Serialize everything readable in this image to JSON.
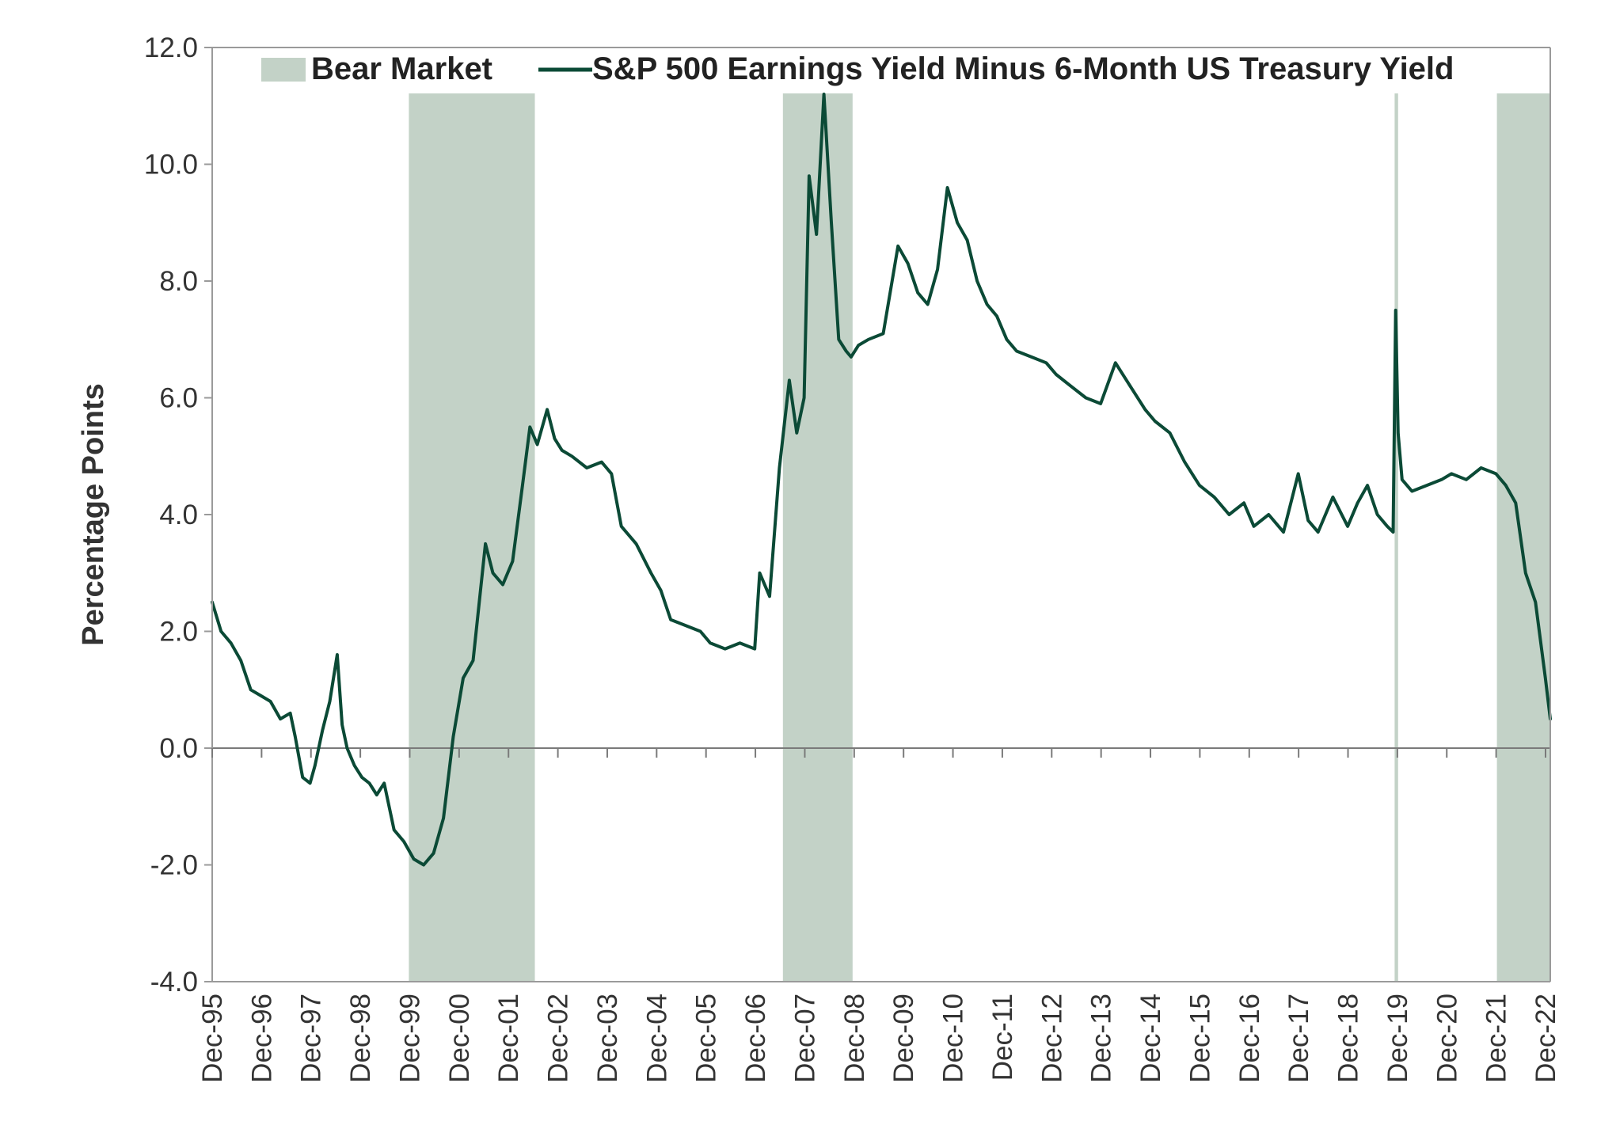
{
  "chart_data": {
    "type": "line",
    "ylabel": "Percentage Points",
    "xlabel": "",
    "ylim": [
      -4.0,
      12.0
    ],
    "y_ticks": [
      "12.0",
      "10.0",
      "8.0",
      "6.0",
      "4.0",
      "2.0",
      "0.0",
      "-2.0",
      "-4.0"
    ],
    "x_ticks": [
      "Dec-95",
      "Dec-96",
      "Dec-97",
      "Dec-98",
      "Dec-99",
      "Dec-00",
      "Dec-01",
      "Dec-02",
      "Dec-03",
      "Dec-04",
      "Dec-05",
      "Dec-06",
      "Dec-07",
      "Dec-08",
      "Dec-09",
      "Dec-10",
      "Dec-11",
      "Dec-12",
      "Dec-13",
      "Dec-14",
      "Dec-15",
      "Dec-16",
      "Dec-17",
      "Dec-18",
      "Dec-19",
      "Dec-20",
      "Dec-21",
      "Dec-22"
    ],
    "grid": false,
    "legend": {
      "position": "top",
      "bear_label": "Bear Market",
      "series_label": "S&P 500 Earnings Yield Minus 6-Month US Treasury Yield"
    },
    "colors": {
      "line": "#0b4a36",
      "bear": "#c3d2c7",
      "axis": "#999999"
    },
    "bear_markets": [
      {
        "start": 1999.9,
        "end": 2002.45
      },
      {
        "start": 2007.47,
        "end": 2008.88
      },
      {
        "start": 2019.85,
        "end": 2019.92
      },
      {
        "start": 2021.92,
        "end": 2023.03
      }
    ],
    "series": [
      {
        "name": "S&P 500 Earnings Yield Minus 6-Month US Treasury Yield",
        "x": [
          1995.92,
          1996.1,
          1996.3,
          1996.5,
          1996.7,
          1996.9,
          1997.1,
          1997.3,
          1997.5,
          1997.6,
          1997.75,
          1997.9,
          1998.0,
          1998.15,
          1998.3,
          1998.45,
          1998.55,
          1998.65,
          1998.8,
          1998.95,
          1999.1,
          1999.25,
          1999.4,
          1999.6,
          1999.8,
          2000.0,
          2000.2,
          2000.4,
          2000.6,
          2000.8,
          2001.0,
          2001.2,
          2001.45,
          2001.6,
          2001.8,
          2002.0,
          2002.2,
          2002.35,
          2002.5,
          2002.7,
          2002.85,
          2003.0,
          2003.2,
          2003.5,
          2003.8,
          2004.0,
          2004.2,
          2004.5,
          2004.8,
          2005.0,
          2005.2,
          2005.5,
          2005.8,
          2006.0,
          2006.3,
          2006.6,
          2006.9,
          2007.0,
          2007.2,
          2007.4,
          2007.6,
          2007.75,
          2007.9,
          2008.0,
          2008.15,
          2008.3,
          2008.45,
          2008.6,
          2008.75,
          2008.85,
          2009.0,
          2009.2,
          2009.5,
          2009.8,
          2010.0,
          2010.2,
          2010.4,
          2010.6,
          2010.8,
          2011.0,
          2011.2,
          2011.4,
          2011.6,
          2011.8,
          2012.0,
          2012.2,
          2012.5,
          2012.8,
          2013.0,
          2013.3,
          2013.6,
          2013.9,
          2014.2,
          2014.5,
          2014.8,
          2015.0,
          2015.3,
          2015.6,
          2015.9,
          2016.2,
          2016.5,
          2016.8,
          2017.0,
          2017.3,
          2017.6,
          2017.9,
          2018.1,
          2018.3,
          2018.6,
          2018.9,
          2019.1,
          2019.3,
          2019.5,
          2019.7,
          2019.82,
          2019.87,
          2019.92,
          2020.0,
          2020.2,
          2020.5,
          2020.8,
          2021.0,
          2021.3,
          2021.6,
          2021.9,
          2022.1,
          2022.3,
          2022.5,
          2022.7,
          2022.9,
          2023.0
        ],
        "y": [
          2.5,
          2.0,
          1.8,
          1.5,
          1.0,
          0.9,
          0.8,
          0.5,
          0.6,
          0.2,
          -0.5,
          -0.6,
          -0.3,
          0.3,
          0.8,
          1.6,
          0.4,
          0.0,
          -0.3,
          -0.5,
          -0.6,
          -0.8,
          -0.6,
          -1.4,
          -1.6,
          -1.9,
          -2.0,
          -1.8,
          -1.2,
          0.2,
          1.2,
          1.5,
          3.5,
          3.0,
          2.8,
          3.2,
          4.5,
          5.5,
          5.2,
          5.8,
          5.3,
          5.1,
          5.0,
          4.8,
          4.9,
          4.7,
          3.8,
          3.5,
          3.0,
          2.7,
          2.2,
          2.1,
          2.0,
          1.8,
          1.7,
          1.8,
          1.7,
          3.0,
          2.6,
          4.8,
          6.3,
          5.4,
          6.0,
          9.8,
          8.8,
          11.2,
          9.0,
          7.0,
          6.8,
          6.7,
          6.9,
          7.0,
          7.1,
          8.6,
          8.3,
          7.8,
          7.6,
          8.2,
          9.6,
          9.0,
          8.7,
          8.0,
          7.6,
          7.4,
          7.0,
          6.8,
          6.7,
          6.6,
          6.4,
          6.2,
          6.0,
          5.9,
          6.6,
          6.2,
          5.8,
          5.6,
          5.4,
          4.9,
          4.5,
          4.3,
          4.0,
          4.2,
          3.8,
          4.0,
          3.7,
          4.7,
          3.9,
          3.7,
          4.3,
          3.8,
          4.2,
          4.5,
          4.0,
          3.8,
          3.7,
          7.5,
          5.4,
          4.6,
          4.4,
          4.5,
          4.6,
          4.7,
          4.6,
          4.8,
          4.7,
          4.5,
          4.2,
          3.0,
          2.5,
          1.2,
          0.5
        ]
      }
    ]
  }
}
